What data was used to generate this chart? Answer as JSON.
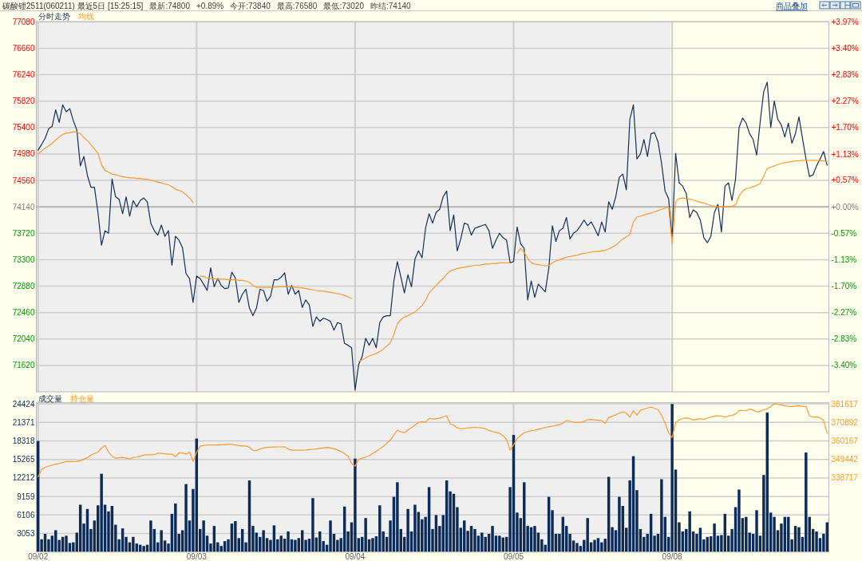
{
  "chart_data": [
    {
      "type": "line",
      "title": "碳酸锂2511(060211) 最近5日 [15:25:15]",
      "annotations": [
        "最新:74800",
        "+0.89%",
        "今开:73840",
        "最高:76580",
        "最低:73020",
        "昨结:74140",
        "商品叠加"
      ],
      "categories": [
        null,
        null,
        null,
        null,
        null,
        null,
        null,
        null,
        null,
        null,
        null,
        null,
        null,
        null,
        null,
        null,
        null,
        null,
        null,
        null,
        null,
        null,
        null,
        null,
        null,
        null,
        null,
        null,
        null,
        null,
        null,
        null,
        null,
        null,
        null,
        null,
        null,
        null,
        null,
        null,
        null,
        null,
        null,
        null,
        null,
        null,
        null,
        null,
        null,
        null,
        null,
        null,
        null,
        null,
        null,
        null,
        null,
        null,
        null,
        null,
        null,
        null,
        null,
        null,
        null,
        null,
        null,
        null,
        null,
        null,
        null,
        null,
        null,
        null,
        null,
        null,
        null,
        null,
        null,
        null,
        null,
        null,
        null,
        null,
        null,
        null,
        null,
        null,
        null,
        null,
        null,
        null,
        null,
        null,
        null,
        null,
        null,
        null,
        null,
        null,
        null,
        null,
        null,
        null,
        null,
        null,
        null,
        null,
        null,
        null,
        null,
        null,
        null,
        null,
        null,
        null,
        null,
        null,
        null,
        null,
        null,
        null,
        null,
        null,
        null,
        null,
        null,
        null,
        null,
        null,
        null,
        null,
        null,
        null,
        null,
        null,
        null,
        null,
        null,
        null,
        null,
        null,
        null,
        null,
        null,
        null,
        null,
        null,
        null,
        null,
        null,
        null,
        null,
        null,
        null,
        null,
        null,
        null,
        null,
        null,
        null,
        null,
        null,
        null,
        null,
        null,
        null,
        null,
        null,
        null,
        null,
        null,
        null,
        null,
        null,
        null,
        null,
        null,
        null,
        null,
        null,
        null,
        null,
        null,
        null,
        null,
        null,
        null,
        null,
        null,
        null,
        null,
        null,
        null,
        null,
        null,
        null,
        null,
        null,
        null,
        null,
        null,
        null,
        null,
        null,
        null,
        null,
        null,
        null,
        null,
        null,
        null,
        null,
        null,
        null,
        null,
        null,
        null,
        null,
        null,
        null,
        null,
        null,
        null,
        null
      ],
      "ylim": [
        71200,
        77080
      ],
      "yticks": [
        71620,
        72040,
        72460,
        72880,
        73300,
        73720,
        74140,
        74560,
        74980,
        75400,
        75820,
        76240,
        76660,
        77080
      ],
      "y2lim": [
        -3.97,
        3.97
      ],
      "y2ticks": [
        {
          "value": -3.4,
          "label": "-3.40%"
        },
        {
          "value": -2.83,
          "label": "-2.83%"
        },
        {
          "value": -2.27,
          "label": "-2.27%"
        },
        {
          "value": -1.7,
          "label": "-1.70%"
        },
        {
          "value": -1.13,
          "label": "-1.13%"
        },
        {
          "value": -0.57,
          "label": "-0.57%"
        },
        {
          "value": 0,
          "label": "+0.00%"
        },
        {
          "value": 0.57,
          "label": "+0.57%"
        },
        {
          "value": 1.13,
          "label": "+1.13%"
        },
        {
          "value": 1.7,
          "label": "+1.70%"
        },
        {
          "value": 2.27,
          "label": "+2.27%"
        },
        {
          "value": 2.83,
          "label": "+2.83%"
        },
        {
          "value": 3.4,
          "label": "+3.40%"
        },
        {
          "value": 3.97,
          "label": "+3.97%"
        }
      ],
      "tick_labels": "y",
      "grid": true,
      "legend": "top left",
      "ref_lines": [
        {
          "axis": "y",
          "value": 74140,
          "color": "#b4b4b4"
        }
      ],
      "series": [
        {
          "name": "分时走势",
          "color": "#132f5a",
          "values": [
            75040,
            75130,
            75230,
            75380,
            75420,
            75680,
            75480,
            75760,
            75650,
            75700,
            75510,
            75360,
            74790,
            74940,
            74640,
            74450,
            74450,
            74050,
            73530,
            73760,
            73720,
            74580,
            74300,
            74260,
            74030,
            74300,
            73990,
            74240,
            74140,
            74240,
            74280,
            74220,
            73880,
            73760,
            73690,
            73850,
            73670,
            73760,
            73210,
            73670,
            73610,
            73490,
            73080,
            73000,
            72620,
            73040,
            73000,
            72910,
            72810,
            73170,
            72870,
            73000,
            72890,
            72840,
            72850,
            73100,
            73010,
            72620,
            72750,
            72830,
            72530,
            72410,
            72530,
            72830,
            72810,
            72640,
            72720,
            72980,
            72980,
            73020,
            73090,
            72750,
            72890,
            72750,
            72810,
            72540,
            72660,
            72580,
            72240,
            72390,
            72320,
            72370,
            72350,
            72320,
            72180,
            72300,
            72280,
            71970,
            71940,
            71900,
            71230,
            71630,
            71760,
            72050,
            71940,
            72050,
            71900,
            72300,
            72390,
            72410,
            72410,
            72960,
            73270,
            73020,
            72770,
            73060,
            72870,
            73310,
            73440,
            73330,
            73800,
            74030,
            73880,
            74050,
            74100,
            74300,
            74390,
            73760,
            74010,
            73440,
            73630,
            73880,
            73860,
            73690,
            73800,
            73820,
            73840,
            73860,
            73760,
            73480,
            73610,
            73720,
            73650,
            73610,
            73250,
            73270,
            73820,
            73550,
            73480,
            72660,
            72960,
            72700,
            72910,
            72850,
            72790,
            73170,
            73840,
            73590,
            73760,
            73800,
            73970,
            73630,
            73720,
            73760,
            73840,
            73930,
            73840,
            73900,
            73800,
            73680,
            73900,
            73740,
            74220,
            74100,
            74300,
            74610,
            74660,
            74410,
            75530,
            75760,
            74900,
            74980,
            75210,
            74940,
            75300,
            75320,
            75170,
            74830,
            74390,
            74270,
            73630,
            74990,
            74520,
            74470,
            74350,
            73970,
            74090,
            74050,
            73930,
            73650,
            73570,
            73670,
            74050,
            74180,
            73740,
            74470,
            74520,
            74240,
            74580,
            75400,
            75550,
            75470,
            75300,
            75210,
            74960,
            75490,
            75970,
            76120,
            75400,
            75820,
            75530,
            75440,
            75250,
            75470,
            75150,
            75300,
            75570,
            75230,
            74900,
            74620,
            74650,
            74790,
            74900,
            75020,
            74800
          ]
        },
        {
          "name": "均线",
          "color": "#ff9a30",
          "values": [
            74980,
            75030,
            75070,
            75110,
            75150,
            75200,
            75250,
            75290,
            75310,
            75320,
            75330,
            75330,
            75300,
            75240,
            75190,
            75130,
            75060,
            74990,
            74810,
            74720,
            74690,
            74660,
            74650,
            74630,
            74620,
            74610,
            74600,
            74600,
            74590,
            74590,
            74580,
            74580,
            74560,
            74550,
            74530,
            74520,
            74500,
            74490,
            74460,
            74420,
            74400,
            74380,
            74330,
            74280,
            74210,
            null,
            73040,
            73030,
            73010,
            73000,
            73000,
            72990,
            72990,
            72990,
            72980,
            72980,
            72980,
            72970,
            72970,
            72960,
            72940,
            72890,
            72860,
            72860,
            72860,
            72860,
            72860,
            72860,
            72870,
            72870,
            72870,
            72870,
            72870,
            72860,
            72860,
            72850,
            72840,
            72830,
            72820,
            72810,
            72800,
            72800,
            72790,
            72780,
            72770,
            72760,
            72750,
            72730,
            72710,
            72680,
            null,
            71680,
            71710,
            71740,
            71770,
            71790,
            71810,
            71840,
            71880,
            71930,
            71980,
            72110,
            72280,
            72350,
            72390,
            72410,
            72440,
            72470,
            72520,
            72570,
            72650,
            72770,
            72830,
            72890,
            72950,
            73000,
            73070,
            73120,
            73140,
            73160,
            73170,
            73180,
            73190,
            73200,
            73210,
            73210,
            73220,
            73230,
            73230,
            73240,
            73240,
            73250,
            73250,
            73250,
            73250,
            null,
            73400,
            73480,
            73420,
            73320,
            73250,
            73230,
            73220,
            73210,
            73200,
            73210,
            73250,
            73280,
            73300,
            73320,
            73340,
            73350,
            73360,
            73370,
            73390,
            73400,
            73410,
            73420,
            73430,
            73430,
            73440,
            73450,
            73470,
            73500,
            73530,
            73580,
            73630,
            73660,
            73700,
            73900,
            73980,
            73990,
            74010,
            74030,
            74040,
            74060,
            74080,
            74100,
            74120,
            74140,
            73550,
            74220,
            74270,
            74280,
            74270,
            74260,
            74250,
            74230,
            74210,
            74200,
            74180,
            74160,
            74150,
            74140,
            74140,
            74140,
            74140,
            74150,
            74170,
            74310,
            74390,
            74430,
            74440,
            74460,
            74480,
            74510,
            74630,
            74750,
            74770,
            74790,
            74810,
            74830,
            74840,
            74850,
            74860,
            74870,
            74870,
            74880,
            74880,
            74880,
            74880,
            74880,
            74870,
            74870,
            74860
          ]
        }
      ]
    },
    {
      "type": "bar",
      "categories": [
        "09/02",
        null,
        null,
        null,
        null,
        null,
        null,
        null,
        null,
        null,
        null,
        null,
        null,
        null,
        null,
        null,
        null,
        null,
        null,
        null,
        null,
        null,
        null,
        null,
        null,
        null,
        null,
        null,
        null,
        null,
        null,
        null,
        null,
        null,
        null,
        null,
        null,
        null,
        null,
        null,
        null,
        null,
        null,
        null,
        null,
        "09/03",
        null,
        null,
        null,
        null,
        null,
        null,
        null,
        null,
        null,
        null,
        null,
        null,
        null,
        null,
        null,
        null,
        null,
        null,
        null,
        null,
        null,
        null,
        null,
        null,
        null,
        null,
        null,
        null,
        null,
        null,
        null,
        null,
        null,
        null,
        null,
        null,
        null,
        null,
        null,
        null,
        null,
        null,
        null,
        null,
        "09/04",
        null,
        null,
        null,
        null,
        null,
        null,
        null,
        null,
        null,
        null,
        null,
        null,
        null,
        null,
        null,
        null,
        null,
        null,
        null,
        null,
        null,
        null,
        null,
        null,
        null,
        null,
        null,
        null,
        null,
        null,
        null,
        null,
        null,
        null,
        null,
        null,
        null,
        null,
        null,
        null,
        null,
        null,
        null,
        null,
        "09/05",
        null,
        null,
        null,
        null,
        null,
        null,
        null,
        null,
        null,
        null,
        null,
        null,
        null,
        null,
        null,
        null,
        null,
        null,
        null,
        null,
        null,
        null,
        null,
        null,
        null,
        null,
        null,
        null,
        null,
        null,
        null,
        null,
        null,
        null,
        null,
        null,
        null,
        null,
        null,
        null,
        null,
        null,
        null,
        null,
        "09/08",
        null,
        null,
        null,
        null,
        null,
        null,
        null,
        null,
        null,
        null,
        null,
        null,
        null,
        null,
        null,
        null,
        null,
        null,
        null,
        null,
        null,
        null,
        null,
        null,
        null,
        null,
        null,
        null,
        null,
        null,
        null,
        null,
        null,
        null,
        null,
        null,
        null,
        null,
        null,
        null,
        null,
        null,
        null,
        null
      ],
      "ylim": [
        0,
        24600
      ],
      "yticks": [
        3053,
        6106,
        9159,
        12212,
        15265,
        18318,
        21371,
        24424
      ],
      "y2lim": [
        295817,
        382236
      ],
      "y2ticks": [
        338717,
        349442,
        360167,
        370892,
        381617
      ],
      "grid": true,
      "legend": "top left",
      "series": [
        {
          "name": "成交量",
          "color": "#0c2b57",
          "values": [
            18300,
            2100,
            3000,
            2100,
            2700,
            3600,
            2000,
            2500,
            2700,
            1500,
            1600,
            3200,
            7800,
            4700,
            7100,
            3800,
            5200,
            7700,
            12900,
            7800,
            6700,
            7600,
            4500,
            2100,
            3900,
            2500,
            1600,
            2500,
            1400,
            1200,
            1000,
            1200,
            5200,
            3800,
            1600,
            3600,
            1900,
            1400,
            6300,
            8000,
            3000,
            3600,
            11200,
            5200,
            10400,
            18700,
            3800,
            5200,
            2700,
            1400,
            4300,
            1600,
            1000,
            1800,
            2100,
            4700,
            5100,
            2300,
            3800,
            1600,
            11800,
            4300,
            3200,
            2500,
            3600,
            2300,
            2000,
            4400,
            2100,
            2700,
            2200,
            3400,
            2100,
            2000,
            2300,
            3600,
            2000,
            2200,
            8900,
            2400,
            3400,
            1800,
            1200,
            5200,
            3000,
            2000,
            2300,
            7500,
            3400,
            4900,
            15400,
            2300,
            2500,
            5600,
            2100,
            2300,
            2600,
            7700,
            3400,
            2500,
            5200,
            9100,
            11500,
            3800,
            2500,
            7100,
            3400,
            7800,
            6600,
            5400,
            5800,
            10700,
            3800,
            6100,
            4300,
            6100,
            11800,
            10000,
            9600,
            7400,
            4000,
            5200,
            3500,
            4300,
            3800,
            2700,
            3200,
            2500,
            3000,
            4300,
            2700,
            2700,
            2400,
            2500,
            10700,
            19300,
            6500,
            5600,
            11500,
            4300,
            4100,
            4300,
            3200,
            2100,
            1200,
            9100,
            6900,
            3000,
            3000,
            5800,
            4300,
            3000,
            1900,
            1500,
            1000,
            2000,
            5600,
            1600,
            2000,
            2300,
            1600,
            2200,
            12400,
            4100,
            3600,
            9100,
            7600,
            4000,
            11800,
            15800,
            10200,
            3800,
            2500,
            3000,
            6300,
            2700,
            3000,
            12000,
            5800,
            2500,
            24400,
            13600,
            4900,
            3400,
            3800,
            6700,
            3400,
            3000,
            4000,
            2100,
            2500,
            2600,
            4700,
            2700,
            2800,
            6300,
            2700,
            3800,
            7400,
            10300,
            5600,
            5800,
            3200,
            3000,
            6900,
            2700,
            12700,
            23000,
            6500,
            5800,
            3600,
            4700,
            5800,
            5800,
            2100,
            4300,
            4100,
            2500,
            16400,
            5800,
            3800,
            3400,
            2300,
            3000,
            4900
          ]
        },
        {
          "name": "持仓量",
          "type": "line",
          "axis": "y2",
          "color": "#ff9a30",
          "values": [
            339300,
            343700,
            344800,
            345600,
            346200,
            346700,
            347100,
            347700,
            348200,
            348200,
            348200,
            348300,
            348700,
            349500,
            350500,
            351800,
            352900,
            353600,
            356000,
            357500,
            353800,
            351300,
            350200,
            350400,
            350600,
            350200,
            349700,
            350600,
            350800,
            351300,
            352000,
            352100,
            352100,
            352200,
            353100,
            352900,
            352700,
            352500,
            352500,
            351000,
            353300,
            353200,
            352500,
            353700,
            348200,
            353500,
            357100,
            357600,
            357800,
            357800,
            357800,
            357800,
            357900,
            357900,
            358300,
            358200,
            357800,
            357400,
            357200,
            357200,
            356500,
            354700,
            354500,
            355500,
            356100,
            356400,
            356500,
            356600,
            356700,
            356700,
            356800,
            355400,
            354800,
            354800,
            354800,
            354800,
            354900,
            355100,
            355300,
            355500,
            355800,
            356100,
            356400,
            356100,
            355700,
            354900,
            353900,
            352800,
            351400,
            347100,
            345500,
            349500,
            350200,
            350800,
            351600,
            352900,
            354200,
            355600,
            357000,
            358900,
            360600,
            363500,
            366300,
            365400,
            364900,
            366500,
            367800,
            369300,
            370900,
            371300,
            371100,
            373100,
            372900,
            372900,
            373400,
            374000,
            374800,
            369900,
            369300,
            367700,
            367200,
            367400,
            367600,
            367800,
            368000,
            367900,
            367600,
            367200,
            366200,
            365600,
            365100,
            364500,
            363200,
            361000,
            354800,
            357900,
            361500,
            363400,
            364900,
            365600,
            366100,
            366400,
            366900,
            367400,
            368000,
            368300,
            368700,
            369100,
            369600,
            370400,
            372000,
            371600,
            371000,
            370800,
            371000,
            371500,
            372400,
            372600,
            372300,
            372100,
            371900,
            370300,
            373700,
            374400,
            375200,
            376300,
            377000,
            376300,
            373900,
            377600,
            375000,
            377900,
            378500,
            379200,
            379800,
            379000,
            378300,
            375000,
            370400,
            364900,
            362100,
            370900,
            372400,
            373200,
            373400,
            373000,
            372200,
            372700,
            373000,
            372600,
            373300,
            374000,
            374500,
            374700,
            374600,
            373900,
            374600,
            374900,
            375700,
            377800,
            377700,
            377600,
            378600,
            378000,
            377000,
            377300,
            378300,
            378700,
            380000,
            381600,
            381300,
            381000,
            380400,
            380200,
            380100,
            380300,
            380400,
            380200,
            380100,
            374700,
            374000,
            374100,
            373500,
            371900,
            364600
          ]
        }
      ]
    }
  ]
}
